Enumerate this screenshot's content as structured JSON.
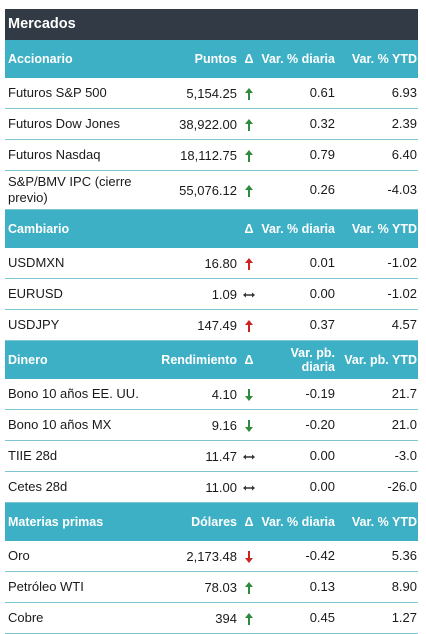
{
  "title": "Mercados",
  "sections": [
    {
      "headers": [
        "Accionario",
        "Puntos",
        "Δ",
        "Var. % diaria",
        "Var. % YTD"
      ],
      "rows": [
        {
          "name": "Futuros S&P 500",
          "value": "5,154.25",
          "dir": "up",
          "daily": "0.61",
          "ytd": "6.93"
        },
        {
          "name": "Futuros Dow Jones",
          "value": "38,922.00",
          "dir": "up",
          "daily": "0.32",
          "ytd": "2.39"
        },
        {
          "name": "Futuros Nasdaq",
          "value": "18,112.75",
          "dir": "up",
          "daily": "0.79",
          "ytd": "6.40"
        },
        {
          "name": "S&P/BMV IPC (cierre previo)",
          "value": "55,076.12",
          "dir": "up",
          "daily": "0.26",
          "ytd": "-4.03"
        }
      ]
    },
    {
      "headers": [
        "Cambiario",
        "",
        "Δ",
        "Var. % diaria",
        "Var. % YTD"
      ],
      "rows": [
        {
          "name": "USDMXN",
          "value": "16.80",
          "dir": "up-red",
          "daily": "0.01",
          "ytd": "-1.02"
        },
        {
          "name": "EURUSD",
          "value": "1.09",
          "dir": "flat",
          "daily": "0.00",
          "ytd": "-1.02"
        },
        {
          "name": "USDJPY",
          "value": "147.49",
          "dir": "up-red",
          "daily": "0.37",
          "ytd": "4.57"
        }
      ]
    },
    {
      "headers": [
        "Dinero",
        "Rendimiento",
        "Δ",
        "Var. pb. diaria",
        "Var. pb. YTD"
      ],
      "rows": [
        {
          "name": "Bono 10 años EE. UU.",
          "value": "4.10",
          "dir": "down-green",
          "daily": "-0.19",
          "ytd": "21.7"
        },
        {
          "name": "Bono 10 años MX",
          "value": "9.16",
          "dir": "down-green",
          "daily": "-0.20",
          "ytd": "21.0"
        },
        {
          "name": "TIIE 28d",
          "value": "11.47",
          "dir": "flat",
          "daily": "0.00",
          "ytd": "-3.0"
        },
        {
          "name": "Cetes 28d",
          "value": "11.00",
          "dir": "flat",
          "daily": "0.00",
          "ytd": "-26.0"
        }
      ]
    },
    {
      "headers": [
        "Materias primas",
        "Dólares",
        "Δ",
        "Var. % diaria",
        "Var. % YTD"
      ],
      "rows": [
        {
          "name": "Oro",
          "value": "2,173.48",
          "dir": "down-red",
          "daily": "-0.42",
          "ytd": "5.36"
        },
        {
          "name": "Petróleo WTI",
          "value": "78.03",
          "dir": "up",
          "daily": "0.13",
          "ytd": "8.90"
        },
        {
          "name": "Cobre",
          "value": "394",
          "dir": "up",
          "daily": "0.45",
          "ytd": "1.27"
        }
      ]
    }
  ],
  "colors": {
    "title_bg": "#323a45",
    "header_bg": "#3eb0c5",
    "up_green": "#2e8b3d",
    "red": "#cc2222",
    "flat": "#333333"
  }
}
